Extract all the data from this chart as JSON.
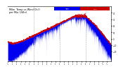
{
  "title": "Milw   Temp vs Wind Chill per Min (24hr)",
  "title_fontsize": 3.0,
  "background_color": "#ffffff",
  "bar_color": "#0000ee",
  "line_color": "#cc0000",
  "legend_temp_color": "#cc0000",
  "legend_chill_color": "#0000ee",
  "ylim": [
    -35,
    50
  ],
  "xlim": [
    0,
    1440
  ],
  "n_points": 1440,
  "dashed_vertical_lines": [
    360,
    720,
    1080
  ],
  "grid_color": "#999999"
}
